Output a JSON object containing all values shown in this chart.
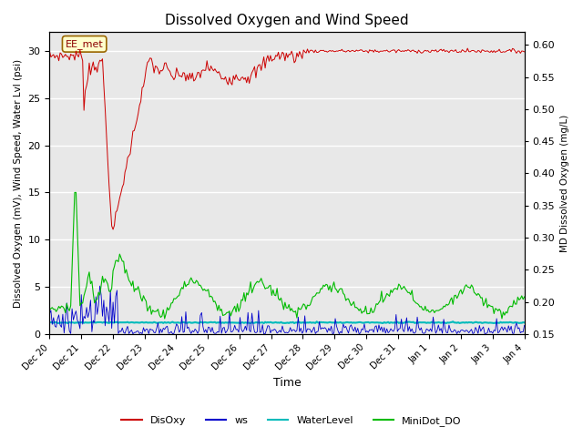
{
  "title": "Dissolved Oxygen and Wind Speed",
  "ylabel_left": "Dissolved Oxygen (mV), Wind Speed, Water Lvl (psi)",
  "ylabel_right": "MD Dissolved Oxygen (mg/L)",
  "xlabel": "Time",
  "ylim_left": [
    0,
    32
  ],
  "ylim_right": [
    0.15,
    0.62
  ],
  "yticks_left": [
    0,
    5,
    10,
    15,
    20,
    25,
    30
  ],
  "yticks_right": [
    0.15,
    0.2,
    0.25,
    0.3,
    0.35,
    0.4,
    0.45,
    0.5,
    0.55,
    0.6
  ],
  "bg_color": "#e8e8e8",
  "grid_color": "#ffffff",
  "annotation_text": "EE_met",
  "legend_entries": [
    "DisOxy",
    "ws",
    "WaterLevel",
    "MiniDot_DO"
  ],
  "legend_colors": [
    "#cc0000",
    "#0000cc",
    "#00cccc",
    "#00bb00"
  ]
}
